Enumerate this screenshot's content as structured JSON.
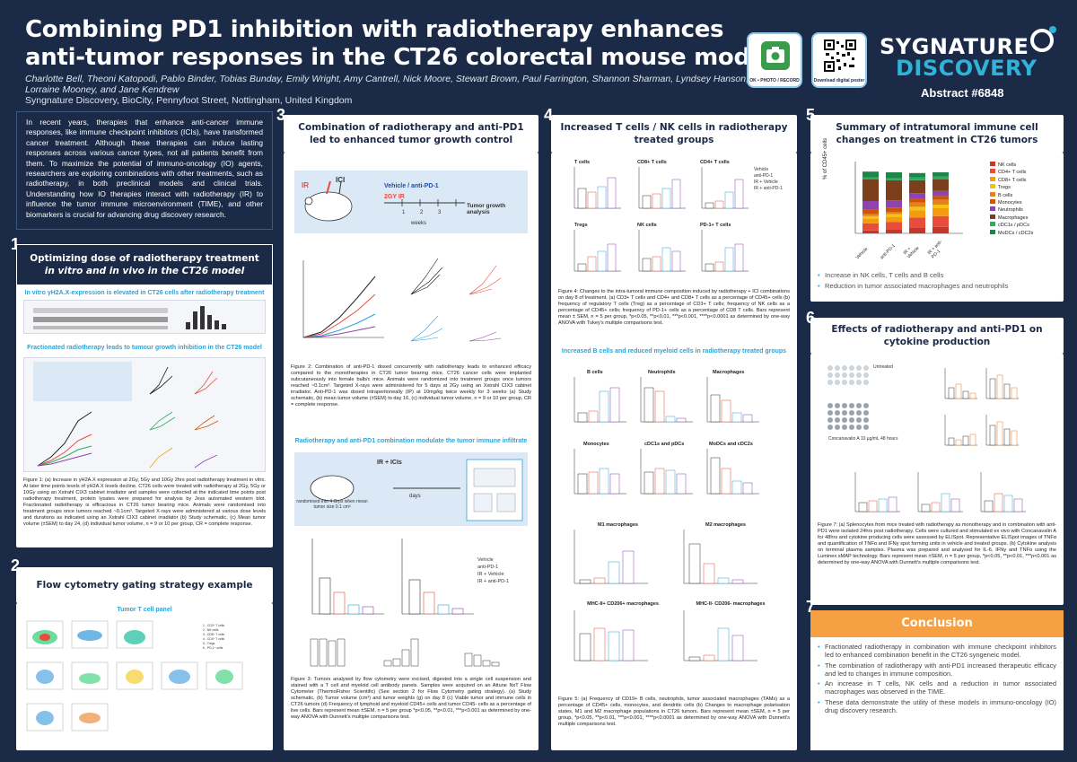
{
  "header": {
    "title_line1": "Combining PD1 inhibition with radiotherapy enhances",
    "title_line2": "anti-tumor responses in the CT26 colorectal mouse model",
    "authors": "Charlotte Bell, Theoni Katopodi, Pablo Binder, Tobias Bunday, Emily Wright, Amy Cantrell, Nick Moore, Stewart Brown, Paul Farrington, Shannon Sharman, Lyndsey Hanson, Lorraine Mooney, and Jane Kendrew",
    "affiliation": "Syngnature Discovery, BioCity, Pennyfoot Street, Nottingham, United Kingdom",
    "qr1_caption": "OK • PHOTO / RECORD",
    "qr2_caption": "Download digital poster",
    "logo_line1": "SYGNATURE",
    "logo_line2": "DISCOVERY",
    "abstract": "Abstract #6848"
  },
  "intro": "In recent years, therapies that enhance anti-cancer immune responses, like immune checkpoint inhibitors (ICIs), have transformed cancer treatment. Although these therapies can induce lasting responses across various cancer types, not all patients benefit from them. To maximize the potential of immuno-oncology (IO) agents, researchers are exploring combinations with other treatments, such as radiotherapy, in both preclinical models and clinical trials. Understanding how IO therapies interact with radiotherapy (IR) to influence the tumor immune microenvironment (TIME), and other biomarkers is crucial for advancing drug discovery research.",
  "s1": {
    "num": "1",
    "title_a": "Optimizing dose of radiotherapy treatment",
    "title_b": "in vitro and in vivo in the CT26 model",
    "sub1": "In vitro γH2A.X-expression is elevated in CT26 cells after radiotherapy treatment",
    "sub2": "Fractionated radiotherapy leads to tumour growth inhibition in the CT26 model",
    "caption": "Figure 1: (a) Increase in γH2A.X expression at 2Gy, 5Gy and 10Gy 2hrs post radiotherapy treatment in vitro. At later time points levels of γH2A.X levels decline. CT26 cells were treated with radiotherapy at 2Gy, 5Gy or 10Gy using an Xstrahl CIX3 cabinet irradiator and samples were collected at the indicated time points post radiotherapy treatment, protein lysates were prepared for analysis by Jess automated western blot. Fractionated radiotherapy is efficacious in CT26 tumor bearing mice. Animals were randomised into treatment groups once tumors reached ~0.1cm³. Targeted X-rays were administered at various dose levels and durations as indicated using an Xstrahl CIX3 cabinet irradiator (b) Study schematic, (c) Mean tumor volume (±SEM) to day 24, (d) individual tumor volume, n = 9 or 10 per group, CR = complete response."
  },
  "s2": {
    "num": "2",
    "title": "Flow cytometry gating strategy example",
    "sub": "Tumor T cell panel"
  },
  "s3": {
    "num": "3",
    "title": "Combination of radiotherapy and anti-PD1 led to enhanced tumor growth control",
    "schema_ir": "IR",
    "schema_ici": "ICI",
    "schema_vehicle": "Vehicle / anti-PD-1",
    "schema_dose": "2GY IR",
    "schema_weeks": "weeks",
    "schema_analysis": "Tumor growth analysis",
    "caption1": "Figure 2: Combination of anti-PD-1 dosed concurrently with radiotherapy leads to enhanced efficacy compared to the monotherapies in CT26 tumor bearing mice. CT26 cancer cells were implanted subcutaneously into female balb/c mice. Animals were randomized into treatment groups once tumors reached ~0.1cm³. Targeted X-rays were administered for 5 days at 2Gy using an Xstrahl CIX3 cabinet irradiator. Anti-PD-1 was dosed intraperitoneally (IP) at 10mg/kg twice weekly for 3 weeks (a) Study schematic, (b) mean tumor volume (±SEM) to day 16, (c) individual tumor volume, n = 9 or 10 per group, CR = complete response.",
    "sub2": "Radiotherapy and anti-PD1 combination modulate the tumor immune infiltrate",
    "schema2_rand": "randomised into 4 Grps when mean tumor size 0.1 cm³",
    "schema2_days": "days",
    "schema2_ir": "IR + ICIs",
    "legend": [
      "Vehicle",
      "anti-PD-1",
      "IR + Vehicle",
      "IR + anti-PD-1"
    ],
    "caption2": "Figure 3: Tumors analysed by flow cytometry were excised, digested into a single cell suspension and stained with a T cell and myeloid cell antibody panels. Samples were acquired on an Attune NxT Flow Cytometer (ThermoFisher Scientific) (See section 2 for Flow Cytometry gating strategy). (a) Study schematic, (b) Tumor volume (cm³) and tumor weights (g) on day 8 (c) Viable tumor and immune cells in CT26 tumors (d) Frequency of lymphoid and myeloid CD45+ cells and tumor CD45- cells as a percentage of live cells. Bars represent mean ±SEM, n = 5 per group *p<0.05, **p<0.01, ***p<0.001 as determined by one-way ANOVA with Dunnett's multiple comparisons test."
  },
  "s4": {
    "num": "4",
    "title": "Increased T cells / NK cells in radiotherapy treated groups",
    "charts_a": [
      "T cells",
      "CD8+ T cells",
      "CD4+ T cells"
    ],
    "charts_b": [
      "Tregs",
      "NK cells",
      "PD-1+ T cells"
    ],
    "legend": [
      "Vehicle",
      "anti-PD-1",
      "IR + Vehicle",
      "IR + anti-PD-1"
    ],
    "caption1": "Figure 4: Changes to the intra-tumoral immune composition induced by radiotherapy + ICI combinations on day 8 of treatment. (a) CD3+ T cells and CD4+ and CD8+ T cells as a percentage of CD45+ cells (b) frequency of regulatory T cells (Treg) as a percentage of CD3+ T cells; frequency of NK cells as a percentage of CD45+ cells; frequency of PD-1+ cells as a percentage of CD8 T cells. Bars represent mean ± SEM, n = 5 per group, *p<0.05, **p<0.01, ***p<0.001, ****p<0.0001 as determined by one-way ANOVA with Tukey's multiple comparisons test.",
    "sub2": "Increased B cells and reduced myeloid cells in radiotherapy treated groups",
    "charts_c": [
      "B cells",
      "Neutrophils",
      "Macrophages",
      "Monocytes",
      "cDC1s and pDCs",
      "MoDCs and cDC2s"
    ],
    "charts_d": [
      "M1 macrophages",
      "M2 macrophages",
      "MHC-II+ CD206+ macrophages",
      "MHC-II- CD206- macrophages"
    ],
    "caption2": "Figure 5: (a) Frequency of CD19+ B cells, neutrophils, tumor associated macrophages (TAMs) as a percentage of CD45+ cells, monocytes, and dendritic cells (b) Changes to macrophage polarisation states, M1 and M2 macrophage populations in CT26 tumors. Bars represent mean ±SEM, n = 5 per group, *p<0.05, **p<0.01, ***p<0.001, ****p<0.0001 as determined by one-way ANOVA with Dunnett's multiple comparisons test."
  },
  "s5": {
    "num": "5",
    "title": "Summary of intratumoral immune cell changes on treatment in CT26 tumors",
    "ylabel": "% of CD45+ cells",
    "groups": [
      "Vehicle",
      "anti-PD-1",
      "IR + Vehicle",
      "IR + anti-PD-1"
    ],
    "legend": [
      "NK cells",
      "CD4+ T cells",
      "CD8+ T cells",
      "Tregs",
      "B cells",
      "Monocytes",
      "Neutrophils",
      "Macrophages",
      "cDC1s / pDCs",
      "MoDCs / cDC2s"
    ],
    "colors": [
      "#c0392b",
      "#e74c3c",
      "#f39c12",
      "#f1c40f",
      "#e67e22",
      "#d35400",
      "#8e44ad",
      "#7b3f1e",
      "#27ae60",
      "#1e8449"
    ],
    "bullets": [
      "Increase in NK cells, T cells and B cells",
      "Reduction in tumor associated macrophages and neutrophils"
    ]
  },
  "s6": {
    "num": "6",
    "title": "Effects of radiotherapy and anti-PD1 on cytokine production",
    "elispot_untreated": "Untreated",
    "elispot_cona": "Concanavalin A 10 µg/mL 48 hours",
    "caption": "Figure 7: (a) Splenocytes from mice treated with radiotherapy as monotherapy and in combination with anti-PD1 were isolated 24hrs post radiotherapy. Cells were cultured and stimulated ex vivo with Concanavalin A for 48hrs and cytokine producing cells were assessed by ELISpot. Representative ELISpot images of TNFα and quantification of TNFα and IFNγ spot forming units in vehicle and treated groups. (b) Cytokine analysis on terminal plasma samples. Plasma was prepared and analysed for IL-6, IFNγ and TNFα using the Luminex xMAP technology. Bars represent mean ±SEM, n = 5 per group, *p<0.05, **p<0.01, ***p<0.001 as determined by one-way ANOVA with Dunnett's multiple comparisons test."
  },
  "s7": {
    "num": "7",
    "title": "Conclusion",
    "bullets": [
      "Fractionated radiotherapy in combination with immune checkpoint inhibitors led to enhanced combination benefit in the CT26 syngeneic model.",
      "The combination of radiotherapy with anti-PD1 increased therapeutic efficacy and led to changes in immune composition.",
      "An increase in T cells, NK cells and a reduction in tumor associated macrophages was observed in the TIME.",
      "These data demonstrate the utility of these models in immuno-oncology (IO) drug discovery research."
    ]
  }
}
